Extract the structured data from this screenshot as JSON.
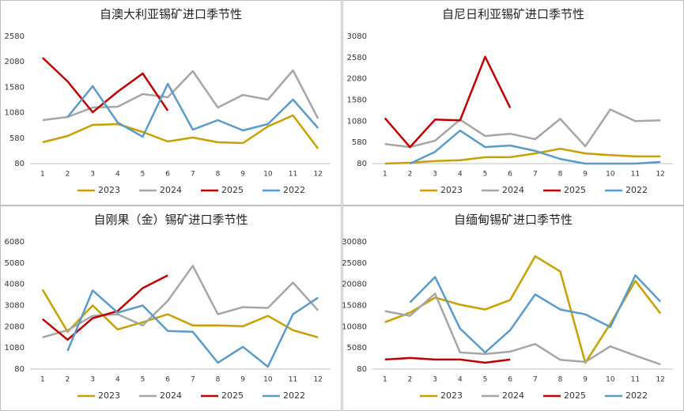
{
  "chart_data": [
    {
      "type": "line",
      "title": "自澳大利亚锡矿进口季节性",
      "categories": [
        1,
        2,
        3,
        4,
        5,
        6,
        7,
        8,
        9,
        10,
        11,
        12
      ],
      "ylim": [
        80,
        2580
      ],
      "yticks": [
        80,
        580,
        1080,
        1580,
        2080,
        2580
      ],
      "series": [
        {
          "name": "2023",
          "color": "#c8a000",
          "values": [
            500,
            623,
            841,
            857,
            701,
            515,
            592,
            499,
            484,
            810,
            1027,
            375
          ]
        },
        {
          "name": "2024",
          "color": "#a6a6a6",
          "values": [
            934,
            996,
            1182,
            1198,
            1446,
            1384,
            1897,
            1182,
            1430,
            1338,
            1912,
            965
          ]
        },
        {
          "name": "2025",
          "color": "#c00000",
          "values": [
            2160,
            1695,
            1089,
            1493,
            1850,
            1120,
            null,
            null,
            null,
            null,
            null,
            null
          ]
        },
        {
          "name": "2022",
          "color": "#5b9bc8",
          "values": [
            null,
            996,
            1602,
            887,
            608,
            1648,
            748,
            934,
            732,
            857,
            1338,
            779
          ]
        }
      ]
    },
    {
      "type": "line",
      "title": "自尼日利亚锡矿进口季节性",
      "categories": [
        1,
        2,
        3,
        4,
        5,
        6,
        7,
        8,
        9,
        10,
        11,
        12
      ],
      "ylim": [
        80,
        3080
      ],
      "yticks": [
        80,
        580,
        1080,
        1580,
        2080,
        2580,
        3080
      ],
      "series": [
        {
          "name": "2023",
          "color": "#c8a000",
          "values": [
            80,
            100,
            140,
            160,
            230,
            230,
            320,
            430,
            320,
            280,
            250,
            250
          ]
        },
        {
          "name": "2024",
          "color": "#a6a6a6",
          "values": [
            543,
            470,
            620,
            1117,
            730,
            785,
            655,
            1135,
            488,
            1357,
            1080,
            1100
          ]
        },
        {
          "name": "2025",
          "color": "#c00000",
          "values": [
            1153,
            470,
            1117,
            1100,
            2600,
            1395,
            null,
            null,
            null,
            null,
            null,
            null
          ]
        },
        {
          "name": "2022",
          "color": "#5b9bc8",
          "values": [
            null,
            80,
            358,
            858,
            470,
            506,
            380,
            190,
            80,
            80,
            80,
            120
          ]
        }
      ]
    },
    {
      "type": "line",
      "title": "自刚果（金）锡矿进口季节性",
      "categories": [
        1,
        2,
        3,
        4,
        5,
        6,
        7,
        8,
        9,
        10,
        11,
        12
      ],
      "ylim": [
        80,
        6080
      ],
      "yticks": [
        80,
        1080,
        2080,
        3080,
        4080,
        5080,
        6080
      ],
      "series": [
        {
          "name": "2023",
          "color": "#c8a000",
          "values": [
            3830,
            1840,
            3080,
            1950,
            2290,
            2665,
            2140,
            2140,
            2100,
            2590,
            1915,
            1580
          ]
        },
        {
          "name": "2024",
          "color": "#a6a6a6",
          "values": [
            1580,
            1915,
            2590,
            2665,
            2140,
            3300,
            4950,
            2665,
            3000,
            2965,
            4160,
            2850
          ]
        },
        {
          "name": "2025",
          "color": "#c00000",
          "values": [
            2440,
            1465,
            2480,
            2815,
            3900,
            4500,
            null,
            null,
            null,
            null,
            null,
            null
          ]
        },
        {
          "name": "2022",
          "color": "#5b9bc8",
          "values": [
            null,
            940,
            3790,
            2740,
            3080,
            1880,
            1840,
            380,
            1130,
            190,
            2665,
            3450
          ]
        }
      ]
    },
    {
      "type": "line",
      "title": "自缅甸锡矿进口季节性",
      "categories": [
        1,
        2,
        3,
        4,
        5,
        6,
        7,
        8,
        9,
        10,
        11,
        12
      ],
      "ylim": [
        80,
        30080
      ],
      "yticks": [
        80,
        5080,
        10080,
        15080,
        20080,
        25080,
        30080
      ],
      "series": [
        {
          "name": "2023",
          "color": "#c8a000",
          "values": [
            11130,
            13380,
            16940,
            15260,
            14130,
            16380,
            26680,
            23120,
            1580,
            10760,
            20870,
            13190
          ]
        },
        {
          "name": "2024",
          "color": "#a6a6a6",
          "values": [
            13750,
            12630,
            17880,
            4010,
            3640,
            4200,
            6010,
            2260,
            1770,
            5450,
            3260,
            1200
          ]
        },
        {
          "name": "2025",
          "color": "#c00000",
          "values": [
            2330,
            2700,
            2330,
            2330,
            1580,
            2330,
            null,
            null,
            null,
            null,
            null,
            null
          ]
        },
        {
          "name": "2022",
          "color": "#5b9bc8",
          "values": [
            null,
            15810,
            21810,
            9630,
            4010,
            9260,
            17690,
            14130,
            13000,
            10010,
            22190,
            16000
          ]
        }
      ]
    }
  ]
}
